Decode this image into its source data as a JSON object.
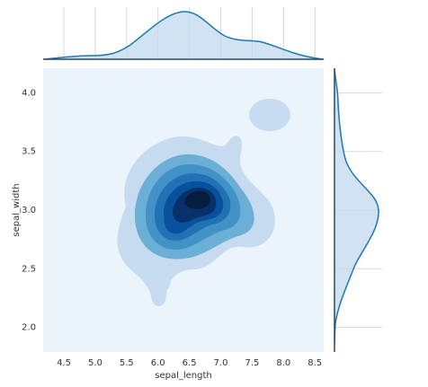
{
  "chart_data": {
    "type": "kde",
    "x_label": "sepal_length",
    "y_label": "sepal_width",
    "xlim": [
      4.17,
      8.64
    ],
    "ylim": [
      1.79,
      4.21
    ],
    "xticks": [
      4.5,
      {
        "value": 5,
        "label": "5.0"
      },
      5.5,
      {
        "value": 6,
        "label": "6.0"
      },
      6.5,
      {
        "value": 7,
        "label": "7.0"
      },
      7.5,
      {
        "value": 8,
        "label": "8.0"
      },
      8.5
    ],
    "yticks": [
      {
        "value": 2,
        "label": "2.0"
      },
      2.5,
      {
        "value": 3,
        "label": "3.0"
      },
      3.5,
      {
        "value": 4,
        "label": "4.0"
      }
    ],
    "grid": true,
    "color": "#1f77b4"
  }
}
